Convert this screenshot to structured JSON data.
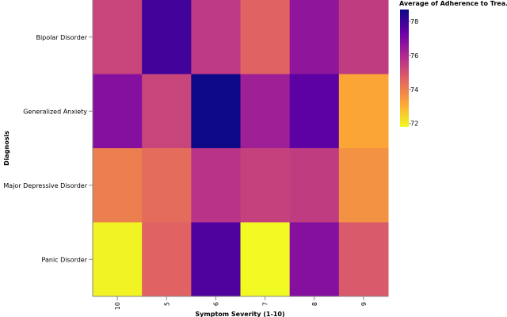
{
  "chart_data": {
    "type": "heatmap",
    "title": "",
    "xlabel": "Symptom Severity (1-10)",
    "ylabel": "Diagnosis",
    "x_categories": [
      "10",
      "5",
      "6",
      "7",
      "8",
      "9"
    ],
    "y_categories": [
      "Bipolar Disorder",
      "Generalized Anxiety",
      "Major Depressive Disorder",
      "Panic Disorder"
    ],
    "values": [
      [
        75.3,
        77.9,
        75.6,
        74.6,
        76.6,
        75.5
      ],
      [
        76.8,
        75.3,
        78.7,
        76.3,
        77.5,
        73.2
      ],
      [
        74.0,
        74.4,
        75.7,
        75.4,
        75.5,
        73.6
      ],
      [
        71.9,
        74.6,
        77.7,
        71.8,
        76.8,
        74.8
      ]
    ],
    "legend": {
      "title": "Average of Adherence to Trea...",
      "ticks": [
        72,
        74,
        76,
        78
      ],
      "range": [
        71.8,
        78.7
      ],
      "placement": "top-right"
    },
    "colors": {
      "scheme": "plasma",
      "stops": [
        "#f0f921",
        "#fca636",
        "#e16462",
        "#b12a90",
        "#6a00a8",
        "#0d0887"
      ]
    }
  }
}
